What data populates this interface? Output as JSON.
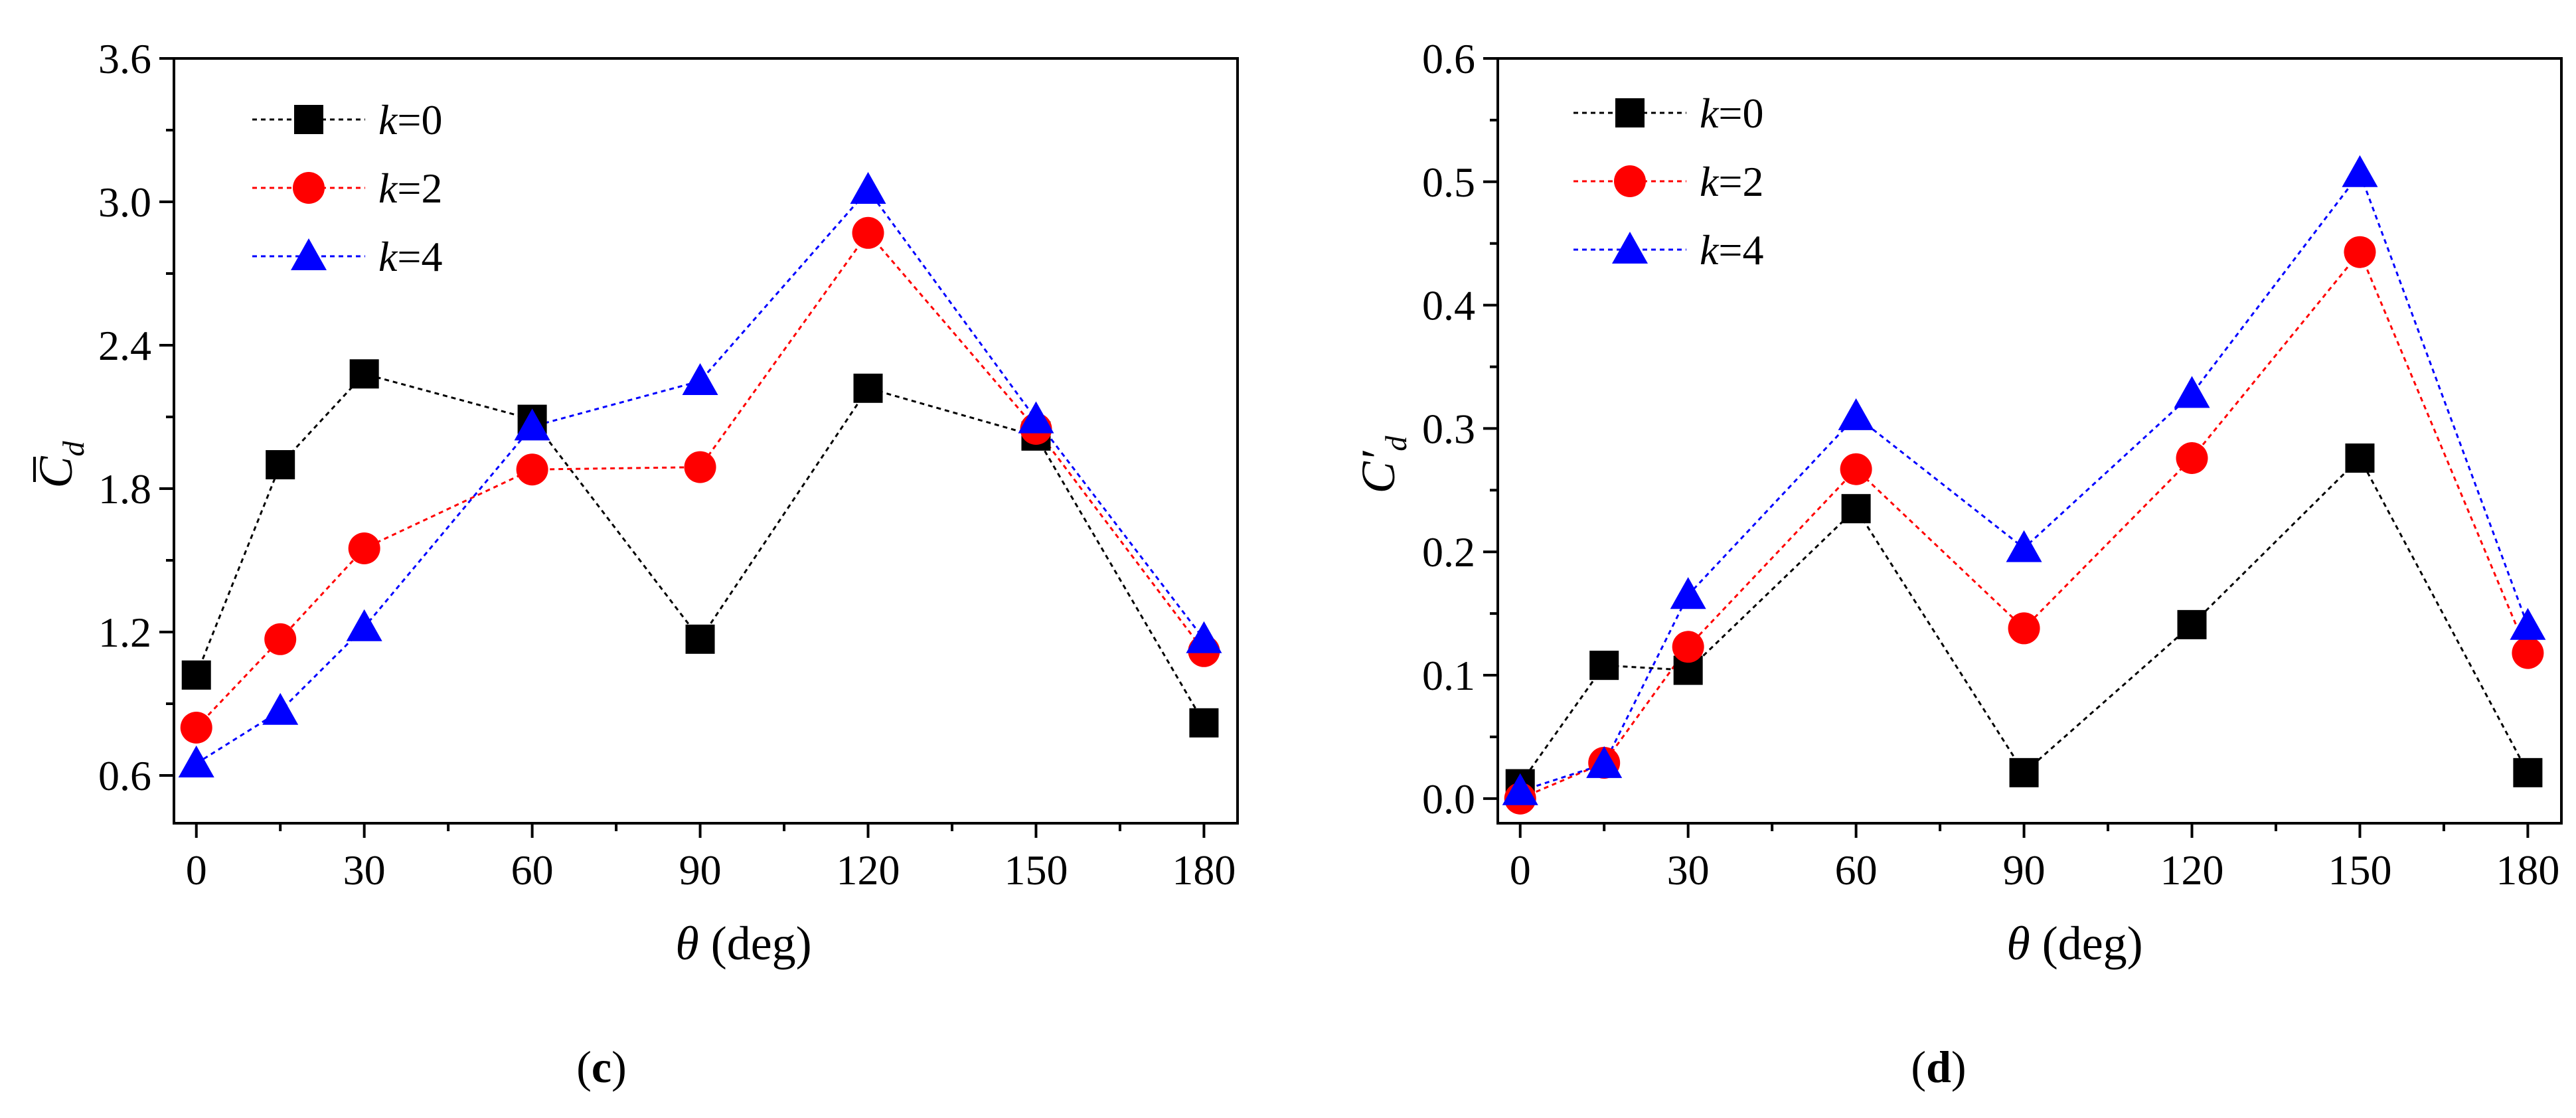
{
  "chart_data": [
    {
      "type": "line",
      "panel": "c",
      "caption_open": "(",
      "caption_letter": "c",
      "caption_close": ")",
      "x": [
        0,
        15,
        30,
        60,
        90,
        120,
        150,
        180
      ],
      "xticks": [
        0,
        30,
        60,
        90,
        120,
        150,
        180
      ],
      "xlim": [
        -4,
        186
      ],
      "xlabel_theta": "θ",
      "xlabel_rest": " (deg)",
      "ylabel_main": "C",
      "ylabel_sub": "d",
      "ylabel_decor": "bar",
      "ylim": [
        0.4,
        3.6
      ],
      "yticks": [
        "0.6",
        "1.2",
        "1.8",
        "2.4",
        "3.0",
        "3.6"
      ],
      "legend_position": "top-left",
      "series": [
        {
          "k_label": "k",
          "eq_label": "=0",
          "marker": "square",
          "color": "#000000",
          "values": [
            1.02,
            1.9,
            2.28,
            2.09,
            1.17,
            2.22,
            2.02,
            0.82
          ]
        },
        {
          "k_label": "k",
          "eq_label": "=2",
          "marker": "circle",
          "color": "#ff0000",
          "values": [
            0.8,
            1.17,
            1.55,
            1.88,
            1.89,
            2.87,
            2.05,
            1.12
          ]
        },
        {
          "k_label": "k",
          "eq_label": "=4",
          "marker": "triangle",
          "color": "#0000ff",
          "values": [
            0.65,
            0.87,
            1.22,
            2.06,
            2.25,
            3.05,
            2.09,
            1.17
          ]
        }
      ]
    },
    {
      "type": "line",
      "panel": "d",
      "caption_open": "(",
      "caption_letter": "d",
      "caption_close": ")",
      "x": [
        0,
        15,
        30,
        60,
        90,
        120,
        150,
        180
      ],
      "xticks": [
        0,
        30,
        60,
        90,
        120,
        150,
        180
      ],
      "xlim": [
        -4,
        186
      ],
      "xlabel_theta": "θ",
      "xlabel_rest": " (deg)",
      "ylabel_main": "C′",
      "ylabel_sub": "d",
      "ylabel_decor": "prime",
      "ylim": [
        -0.02,
        0.6
      ],
      "yticks": [
        "0.0",
        "0.1",
        "0.2",
        "0.3",
        "0.4",
        "0.5",
        "0.6"
      ],
      "legend_position": "top-left",
      "series": [
        {
          "k_label": "k",
          "eq_label": "=0",
          "marker": "square",
          "color": "#000000",
          "values": [
            0.012,
            0.108,
            0.104,
            0.235,
            0.021,
            0.141,
            0.276,
            0.021
          ]
        },
        {
          "k_label": "k",
          "eq_label": "=2",
          "marker": "circle",
          "color": "#ff0000",
          "values": [
            0.0,
            0.029,
            0.123,
            0.267,
            0.138,
            0.276,
            0.443,
            0.118
          ]
        },
        {
          "k_label": "k",
          "eq_label": "=4",
          "marker": "triangle",
          "color": "#0000ff",
          "values": [
            0.006,
            0.028,
            0.165,
            0.31,
            0.203,
            0.328,
            0.507,
            0.14
          ]
        }
      ]
    }
  ]
}
